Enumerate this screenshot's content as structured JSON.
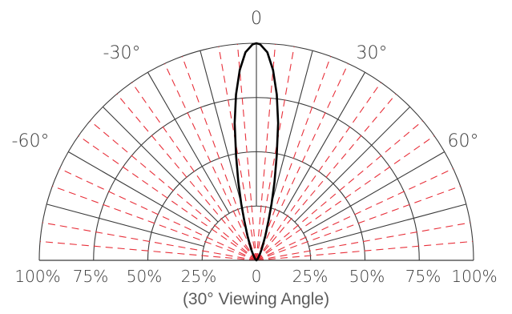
{
  "chart_data": {
    "type": "polar",
    "caption": "(30° Viewing Angle)",
    "radial_tick_labels": [
      "100%",
      "75%",
      "50%",
      "25%",
      "0",
      "25%",
      "50%",
      "75%",
      "100%"
    ],
    "radial_levels": [
      0.25,
      0.5,
      0.75,
      1.0
    ],
    "angle_labels": [
      {
        "angle": -60,
        "text": "-60°"
      },
      {
        "angle": -30,
        "text": "-30°"
      },
      {
        "angle": 0,
        "text": "0"
      },
      {
        "angle": 30,
        "text": "30°"
      },
      {
        "angle": 60,
        "text": "60°"
      }
    ],
    "solid_spokes_deg": [
      -90,
      -75,
      -60,
      -45,
      -30,
      -15,
      0,
      15,
      30,
      45,
      60,
      75,
      90
    ],
    "dashed_spokes_deg": [
      -85,
      -80,
      -70,
      -65,
      -55,
      -50,
      -40,
      -35,
      -25,
      -20,
      -10,
      -5,
      5,
      10,
      20,
      25,
      35,
      40,
      50,
      55,
      65,
      70,
      80,
      85
    ],
    "grid_color": "#3a3a3a",
    "dash_color": "#e8303a",
    "curve_color": "#000000",
    "series": [
      {
        "angles_deg": [
          -90,
          -40,
          -30,
          -25,
          -20,
          -17,
          -15,
          -13,
          -11,
          -9,
          -7,
          -5,
          -3,
          -1,
          0,
          1,
          3,
          5,
          7,
          9,
          11,
          13,
          15,
          17,
          20,
          25,
          30,
          40,
          90
        ],
        "values": [
          0.0,
          0.01,
          0.03,
          0.06,
          0.12,
          0.19,
          0.27,
          0.37,
          0.49,
          0.64,
          0.77,
          0.88,
          0.96,
          0.995,
          1.0,
          0.995,
          0.96,
          0.88,
          0.77,
          0.64,
          0.49,
          0.37,
          0.27,
          0.19,
          0.12,
          0.06,
          0.03,
          0.01,
          0.0
        ]
      }
    ]
  }
}
